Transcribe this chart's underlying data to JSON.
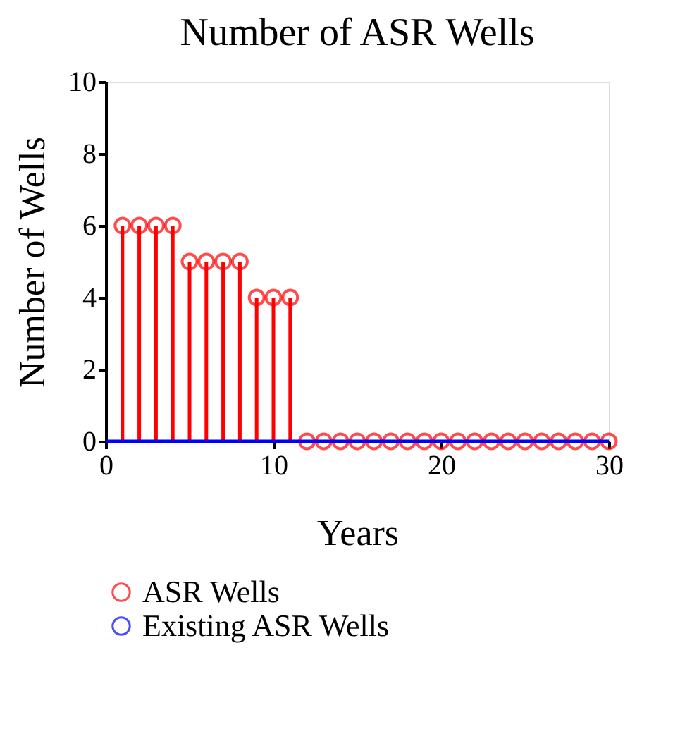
{
  "chart_data": {
    "type": "lollipop",
    "title": "Number of ASR Wells",
    "xlabel": "Years",
    "ylabel": "Number of Wells",
    "xlim": [
      0,
      30
    ],
    "xticks": [
      0,
      10,
      20,
      30
    ],
    "ylim": [
      0,
      10
    ],
    "yticks": [
      0,
      2,
      4,
      6,
      8,
      10
    ],
    "grid": false,
    "legend": "bottom",
    "series": [
      {
        "name": "ASR Wells",
        "marker": "circle",
        "color": "#ff0000",
        "x": [
          1,
          2,
          3,
          4,
          5,
          6,
          7,
          8,
          9,
          10,
          11,
          12,
          13,
          14,
          15,
          16,
          17,
          18,
          19,
          20,
          21,
          22,
          23,
          24,
          25,
          26,
          27,
          28,
          29,
          30
        ],
        "values": [
          6,
          6,
          6,
          6,
          5,
          5,
          5,
          5,
          4,
          4,
          4,
          0,
          0,
          0,
          0,
          0,
          0,
          0,
          0,
          0,
          0,
          0,
          0,
          0,
          0,
          0,
          0,
          0,
          0,
          0
        ]
      },
      {
        "name": "Existing ASR Wells",
        "type": "line",
        "color": "#0000ff",
        "x": [
          0,
          30
        ],
        "values": [
          0,
          0
        ]
      }
    ]
  }
}
